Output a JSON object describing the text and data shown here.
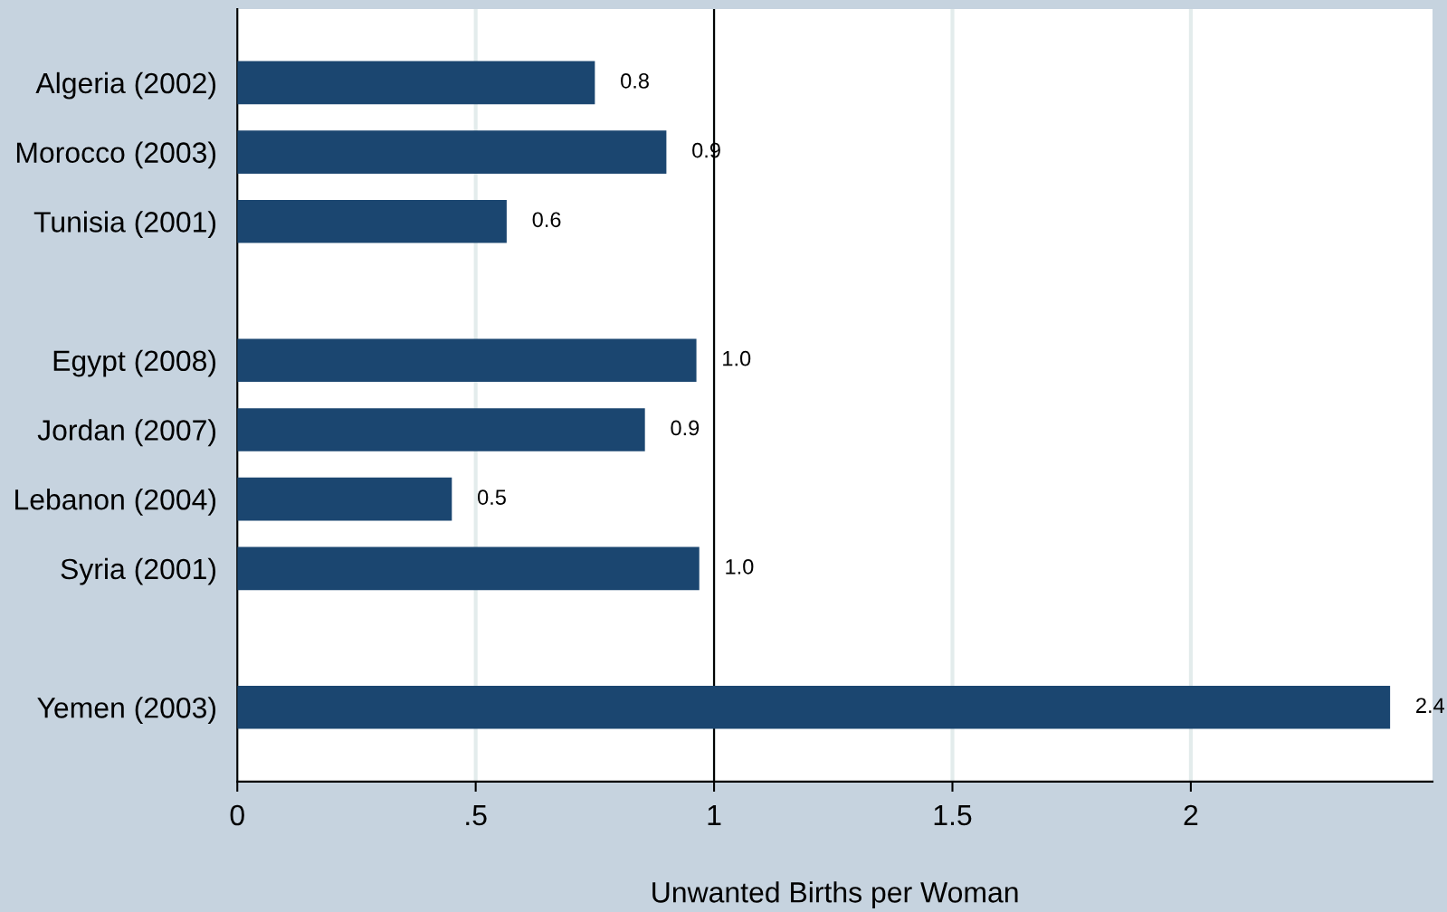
{
  "chart_data": {
    "type": "bar",
    "orientation": "horizontal",
    "xlabel": "Unwanted Births per Woman",
    "categories": [
      "Algeria (2002)",
      "Morocco (2003)",
      "Tunisia (2001)",
      null,
      "Egypt (2008)",
      "Jordan (2007)",
      "Lebanon (2004)",
      "Syria (2001)",
      null,
      "Yemen (2003)"
    ],
    "values": [
      0.75,
      0.9,
      0.565,
      null,
      0.963,
      0.855,
      0.45,
      0.969,
      null,
      2.418
    ],
    "value_labels": [
      "0.8",
      "0.9",
      "0.6",
      null,
      "1.0",
      "0.9",
      "0.5",
      "1.0",
      null,
      "2.4"
    ],
    "color": "#1b4670",
    "xlim": [
      0,
      2.507
    ],
    "xticks": [
      0,
      {
        "value": 0.5,
        "label": ".5"
      },
      1,
      1.5,
      2
    ],
    "ref_lines": [
      {
        "axis": "x",
        "value": 1,
        "color": "#000000"
      }
    ],
    "grid": "x"
  }
}
